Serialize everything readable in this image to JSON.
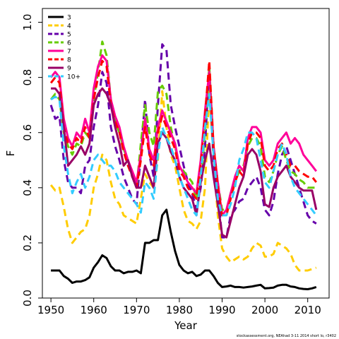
{
  "chart_data": {
    "type": "line",
    "xlabel": "Year",
    "ylabel": "F",
    "xlim": [
      1948,
      2015
    ],
    "ylim": [
      0,
      1.05
    ],
    "xticks": [
      1950,
      1960,
      1970,
      1980,
      1990,
      2000,
      2010
    ],
    "yticks": [
      0.0,
      0.2,
      0.4,
      0.6,
      0.8,
      1.0
    ],
    "ytick_labels": [
      "0.0",
      "0.2",
      "0.4",
      "0.6",
      "0.8",
      "1.0"
    ],
    "legend_position": "top-left",
    "grid": false,
    "footnote": "stockassessment.org, NEAhad 3-11 2014 short lo, r3402",
    "series": [
      {
        "name": "3",
        "color": "#000000",
        "dashed": false,
        "width": 3,
        "x": [
          1950,
          1951,
          1952,
          1953,
          1954,
          1955,
          1956,
          1957,
          1958,
          1959,
          1960,
          1961,
          1962,
          1963,
          1964,
          1965,
          1966,
          1967,
          1968,
          1969,
          1970,
          1971,
          1972,
          1973,
          1974,
          1975,
          1976,
          1977,
          1978,
          1979,
          1980,
          1981,
          1982,
          1983,
          1984,
          1985,
          1986,
          1987,
          1988,
          1989,
          1990,
          1991,
          1992,
          1993,
          1994,
          1995,
          1996,
          1997,
          1998,
          1999,
          2000,
          2001,
          2002,
          2003,
          2004,
          2005,
          2006,
          2007,
          2008,
          2009,
          2010,
          2011,
          2012
        ],
        "y": [
          0.1,
          0.1,
          0.1,
          0.08,
          0.07,
          0.055,
          0.06,
          0.06,
          0.065,
          0.075,
          0.11,
          0.13,
          0.155,
          0.145,
          0.115,
          0.1,
          0.1,
          0.09,
          0.095,
          0.095,
          0.1,
          0.09,
          0.2,
          0.2,
          0.21,
          0.21,
          0.3,
          0.32,
          0.24,
          0.17,
          0.12,
          0.1,
          0.09,
          0.095,
          0.08,
          0.085,
          0.1,
          0.1,
          0.08,
          0.055,
          0.04,
          0.042,
          0.045,
          0.04,
          0.04,
          0.038,
          0.04,
          0.042,
          0.045,
          0.048,
          0.035,
          0.036,
          0.038,
          0.045,
          0.048,
          0.048,
          0.042,
          0.04,
          0.035,
          0.033,
          0.032,
          0.035,
          0.04
        ]
      },
      {
        "name": "4",
        "color": "#FFCC00",
        "dashed": true,
        "width": 3,
        "x": [
          1950,
          1951,
          1952,
          1953,
          1954,
          1955,
          1956,
          1957,
          1958,
          1959,
          1960,
          1961,
          1962,
          1963,
          1964,
          1965,
          1966,
          1967,
          1968,
          1969,
          1970,
          1971,
          1972,
          1973,
          1974,
          1975,
          1976,
          1977,
          1978,
          1979,
          1980,
          1981,
          1982,
          1983,
          1984,
          1985,
          1986,
          1987,
          1988,
          1989,
          1990,
          1991,
          1992,
          1993,
          1994,
          1995,
          1996,
          1997,
          1998,
          1999,
          2000,
          2001,
          2002,
          2003,
          2004,
          2005,
          2006,
          2007,
          2008,
          2009,
          2010,
          2011,
          2012
        ],
        "y": [
          0.41,
          0.39,
          0.4,
          0.33,
          0.25,
          0.2,
          0.22,
          0.24,
          0.25,
          0.3,
          0.4,
          0.45,
          0.52,
          0.5,
          0.42,
          0.36,
          0.34,
          0.3,
          0.29,
          0.28,
          0.27,
          0.36,
          0.45,
          0.42,
          0.4,
          0.5,
          0.75,
          0.62,
          0.52,
          0.48,
          0.4,
          0.32,
          0.28,
          0.27,
          0.25,
          0.28,
          0.4,
          0.75,
          0.5,
          0.3,
          0.18,
          0.15,
          0.13,
          0.14,
          0.15,
          0.14,
          0.15,
          0.18,
          0.2,
          0.19,
          0.15,
          0.15,
          0.16,
          0.2,
          0.19,
          0.18,
          0.16,
          0.12,
          0.1,
          0.1,
          0.1,
          0.105,
          0.11
        ]
      },
      {
        "name": "5",
        "color": "#6600AA",
        "dashed": true,
        "width": 3,
        "x": [
          1950,
          1951,
          1952,
          1953,
          1954,
          1955,
          1956,
          1957,
          1958,
          1959,
          1960,
          1961,
          1962,
          1963,
          1964,
          1965,
          1966,
          1967,
          1968,
          1969,
          1970,
          1971,
          1972,
          1973,
          1974,
          1975,
          1976,
          1977,
          1978,
          1979,
          1980,
          1981,
          1982,
          1983,
          1984,
          1985,
          1986,
          1987,
          1988,
          1989,
          1990,
          1991,
          1992,
          1993,
          1994,
          1995,
          1996,
          1997,
          1998,
          1999,
          2000,
          2001,
          2002,
          2003,
          2004,
          2005,
          2006,
          2007,
          2008,
          2009,
          2010,
          2011,
          2012
        ],
        "y": [
          0.7,
          0.65,
          0.66,
          0.5,
          0.42,
          0.4,
          0.4,
          0.38,
          0.48,
          0.5,
          0.62,
          0.7,
          0.82,
          0.78,
          0.62,
          0.55,
          0.5,
          0.44,
          0.4,
          0.36,
          0.34,
          0.52,
          0.72,
          0.52,
          0.44,
          0.7,
          0.92,
          0.9,
          0.7,
          0.62,
          0.55,
          0.48,
          0.42,
          0.38,
          0.32,
          0.4,
          0.55,
          0.84,
          0.5,
          0.38,
          0.22,
          0.22,
          0.3,
          0.32,
          0.35,
          0.36,
          0.4,
          0.42,
          0.44,
          0.4,
          0.32,
          0.3,
          0.35,
          0.45,
          0.52,
          0.55,
          0.5,
          0.45,
          0.4,
          0.35,
          0.3,
          0.28,
          0.27
        ]
      },
      {
        "name": "6",
        "color": "#66CC00",
        "dashed": true,
        "width": 3,
        "x": [
          1950,
          1951,
          1952,
          1953,
          1954,
          1955,
          1956,
          1957,
          1958,
          1959,
          1960,
          1961,
          1962,
          1963,
          1964,
          1965,
          1966,
          1967,
          1968,
          1969,
          1970,
          1971,
          1972,
          1973,
          1974,
          1975,
          1976,
          1977,
          1978,
          1979,
          1980,
          1981,
          1982,
          1983,
          1984,
          1985,
          1986,
          1987,
          1988,
          1989,
          1990,
          1991,
          1992,
          1993,
          1994,
          1995,
          1996,
          1997,
          1998,
          1999,
          2000,
          2001,
          2002,
          2003,
          2004,
          2005,
          2006,
          2007,
          2008,
          2009,
          2010,
          2011,
          2012
        ],
        "y": [
          0.72,
          0.74,
          0.72,
          0.6,
          0.55,
          0.52,
          0.56,
          0.55,
          0.6,
          0.58,
          0.72,
          0.82,
          0.93,
          0.88,
          0.72,
          0.64,
          0.6,
          0.54,
          0.5,
          0.44,
          0.4,
          0.56,
          0.7,
          0.6,
          0.55,
          0.75,
          0.77,
          0.74,
          0.62,
          0.55,
          0.48,
          0.46,
          0.44,
          0.42,
          0.36,
          0.42,
          0.6,
          0.84,
          0.55,
          0.42,
          0.32,
          0.32,
          0.38,
          0.42,
          0.46,
          0.48,
          0.55,
          0.58,
          0.58,
          0.55,
          0.44,
          0.42,
          0.46,
          0.52,
          0.55,
          0.5,
          0.46,
          0.45,
          0.43,
          0.42,
          0.4,
          0.4,
          0.4
        ]
      },
      {
        "name": "7",
        "color": "#FF0099",
        "dashed": false,
        "width": 3,
        "x": [
          1950,
          1951,
          1952,
          1953,
          1954,
          1955,
          1956,
          1957,
          1958,
          1959,
          1960,
          1961,
          1962,
          1963,
          1964,
          1965,
          1966,
          1967,
          1968,
          1969,
          1970,
          1971,
          1972,
          1973,
          1974,
          1975,
          1976,
          1977,
          1978,
          1979,
          1980,
          1981,
          1982,
          1983,
          1984,
          1985,
          1986,
          1987,
          1988,
          1989,
          1990,
          1991,
          1992,
          1993,
          1994,
          1995,
          1996,
          1997,
          1998,
          1999,
          2000,
          2001,
          2002,
          2003,
          2004,
          2005,
          2006,
          2007,
          2008,
          2009,
          2010,
          2011,
          2012
        ],
        "y": [
          0.8,
          0.82,
          0.8,
          0.65,
          0.58,
          0.55,
          0.6,
          0.58,
          0.65,
          0.6,
          0.76,
          0.84,
          0.88,
          0.86,
          0.72,
          0.66,
          0.62,
          0.55,
          0.5,
          0.46,
          0.42,
          0.52,
          0.65,
          0.54,
          0.5,
          0.62,
          0.68,
          0.64,
          0.6,
          0.56,
          0.48,
          0.45,
          0.42,
          0.4,
          0.38,
          0.5,
          0.68,
          0.82,
          0.55,
          0.42,
          0.3,
          0.32,
          0.38,
          0.44,
          0.48,
          0.46,
          0.58,
          0.62,
          0.62,
          0.6,
          0.5,
          0.48,
          0.5,
          0.56,
          0.58,
          0.6,
          0.56,
          0.58,
          0.56,
          0.52,
          0.5,
          0.48,
          0.46
        ]
      },
      {
        "name": "8",
        "color": "#FF0000",
        "dashed": true,
        "width": 3,
        "x": [
          1950,
          1951,
          1952,
          1953,
          1954,
          1955,
          1956,
          1957,
          1958,
          1959,
          1960,
          1961,
          1962,
          1963,
          1964,
          1965,
          1966,
          1967,
          1968,
          1969,
          1970,
          1971,
          1972,
          1973,
          1974,
          1975,
          1976,
          1977,
          1978,
          1979,
          1980,
          1981,
          1982,
          1983,
          1984,
          1985,
          1986,
          1987,
          1988,
          1989,
          1990,
          1991,
          1992,
          1993,
          1994,
          1995,
          1996,
          1997,
          1998,
          1999,
          2000,
          2001,
          2002,
          2003,
          2004,
          2005,
          2006,
          2007,
          2008,
          2009,
          2010,
          2011,
          2012
        ],
        "y": [
          0.78,
          0.8,
          0.78,
          0.62,
          0.56,
          0.54,
          0.58,
          0.56,
          0.62,
          0.58,
          0.72,
          0.8,
          0.86,
          0.84,
          0.7,
          0.64,
          0.6,
          0.53,
          0.48,
          0.44,
          0.4,
          0.5,
          0.62,
          0.52,
          0.48,
          0.6,
          0.66,
          0.62,
          0.58,
          0.54,
          0.46,
          0.44,
          0.4,
          0.38,
          0.36,
          0.48,
          0.66,
          0.86,
          0.55,
          0.4,
          0.3,
          0.3,
          0.36,
          0.42,
          0.46,
          0.44,
          0.56,
          0.6,
          0.6,
          0.58,
          0.48,
          0.46,
          0.48,
          0.54,
          0.56,
          0.52,
          0.48,
          0.48,
          0.46,
          0.45,
          0.44,
          0.44,
          0.42
        ]
      },
      {
        "name": "9",
        "color": "#990066",
        "dashed": false,
        "width": 3,
        "x": [
          1950,
          1951,
          1952,
          1953,
          1954,
          1955,
          1956,
          1957,
          1958,
          1959,
          1960,
          1961,
          1962,
          1963,
          1964,
          1965,
          1966,
          1967,
          1968,
          1969,
          1970,
          1971,
          1972,
          1973,
          1974,
          1975,
          1976,
          1977,
          1978,
          1979,
          1980,
          1981,
          1982,
          1983,
          1984,
          1985,
          1986,
          1987,
          1988,
          1989,
          1990,
          1991,
          1992,
          1993,
          1994,
          1995,
          1996,
          1997,
          1998,
          1999,
          2000,
          2001,
          2002,
          2003,
          2004,
          2005,
          2006,
          2007,
          2008,
          2009,
          2010,
          2011,
          2012
        ],
        "y": [
          0.76,
          0.76,
          0.74,
          0.62,
          0.48,
          0.5,
          0.52,
          0.55,
          0.52,
          0.56,
          0.7,
          0.74,
          0.76,
          0.74,
          0.7,
          0.62,
          0.56,
          0.48,
          0.5,
          0.44,
          0.4,
          0.4,
          0.48,
          0.44,
          0.4,
          0.56,
          0.6,
          0.58,
          0.53,
          0.5,
          0.44,
          0.4,
          0.38,
          0.36,
          0.3,
          0.42,
          0.5,
          0.56,
          0.44,
          0.34,
          0.23,
          0.22,
          0.28,
          0.34,
          0.4,
          0.44,
          0.52,
          0.54,
          0.52,
          0.46,
          0.34,
          0.33,
          0.4,
          0.44,
          0.46,
          0.48,
          0.44,
          0.42,
          0.4,
          0.39,
          0.39,
          0.39,
          0.32
        ]
      },
      {
        "name": "10+",
        "color": "#33CCFF",
        "dashed": true,
        "width": 3,
        "x": [
          1950,
          1951,
          1952,
          1953,
          1954,
          1955,
          1956,
          1957,
          1958,
          1959,
          1960,
          1961,
          1962,
          1963,
          1964,
          1965,
          1966,
          1967,
          1968,
          1969,
          1970,
          1971,
          1972,
          1973,
          1974,
          1975,
          1976,
          1977,
          1978,
          1979,
          1980,
          1981,
          1982,
          1983,
          1984,
          1985,
          1986,
          1987,
          1988,
          1989,
          1990,
          1991,
          1992,
          1993,
          1994,
          1995,
          1996,
          1997,
          1998,
          1999,
          2000,
          2001,
          2002,
          2003,
          2004,
          2005,
          2006,
          2007,
          2008,
          2009,
          2010,
          2011,
          2012
        ],
        "y": [
          0.72,
          0.73,
          0.72,
          0.55,
          0.45,
          0.38,
          0.42,
          0.45,
          0.4,
          0.44,
          0.5,
          0.52,
          0.5,
          0.48,
          0.48,
          0.46,
          0.42,
          0.4,
          0.38,
          0.36,
          0.34,
          0.31,
          0.42,
          0.4,
          0.36,
          0.52,
          0.62,
          0.58,
          0.55,
          0.5,
          0.44,
          0.4,
          0.36,
          0.32,
          0.3,
          0.44,
          0.62,
          0.74,
          0.52,
          0.36,
          0.3,
          0.3,
          0.34,
          0.4,
          0.5,
          0.54,
          0.6,
          0.6,
          0.58,
          0.5,
          0.42,
          0.4,
          0.46,
          0.52,
          0.56,
          0.52,
          0.44,
          0.4,
          0.38,
          0.36,
          0.34,
          0.32,
          0.3
        ]
      }
    ]
  }
}
